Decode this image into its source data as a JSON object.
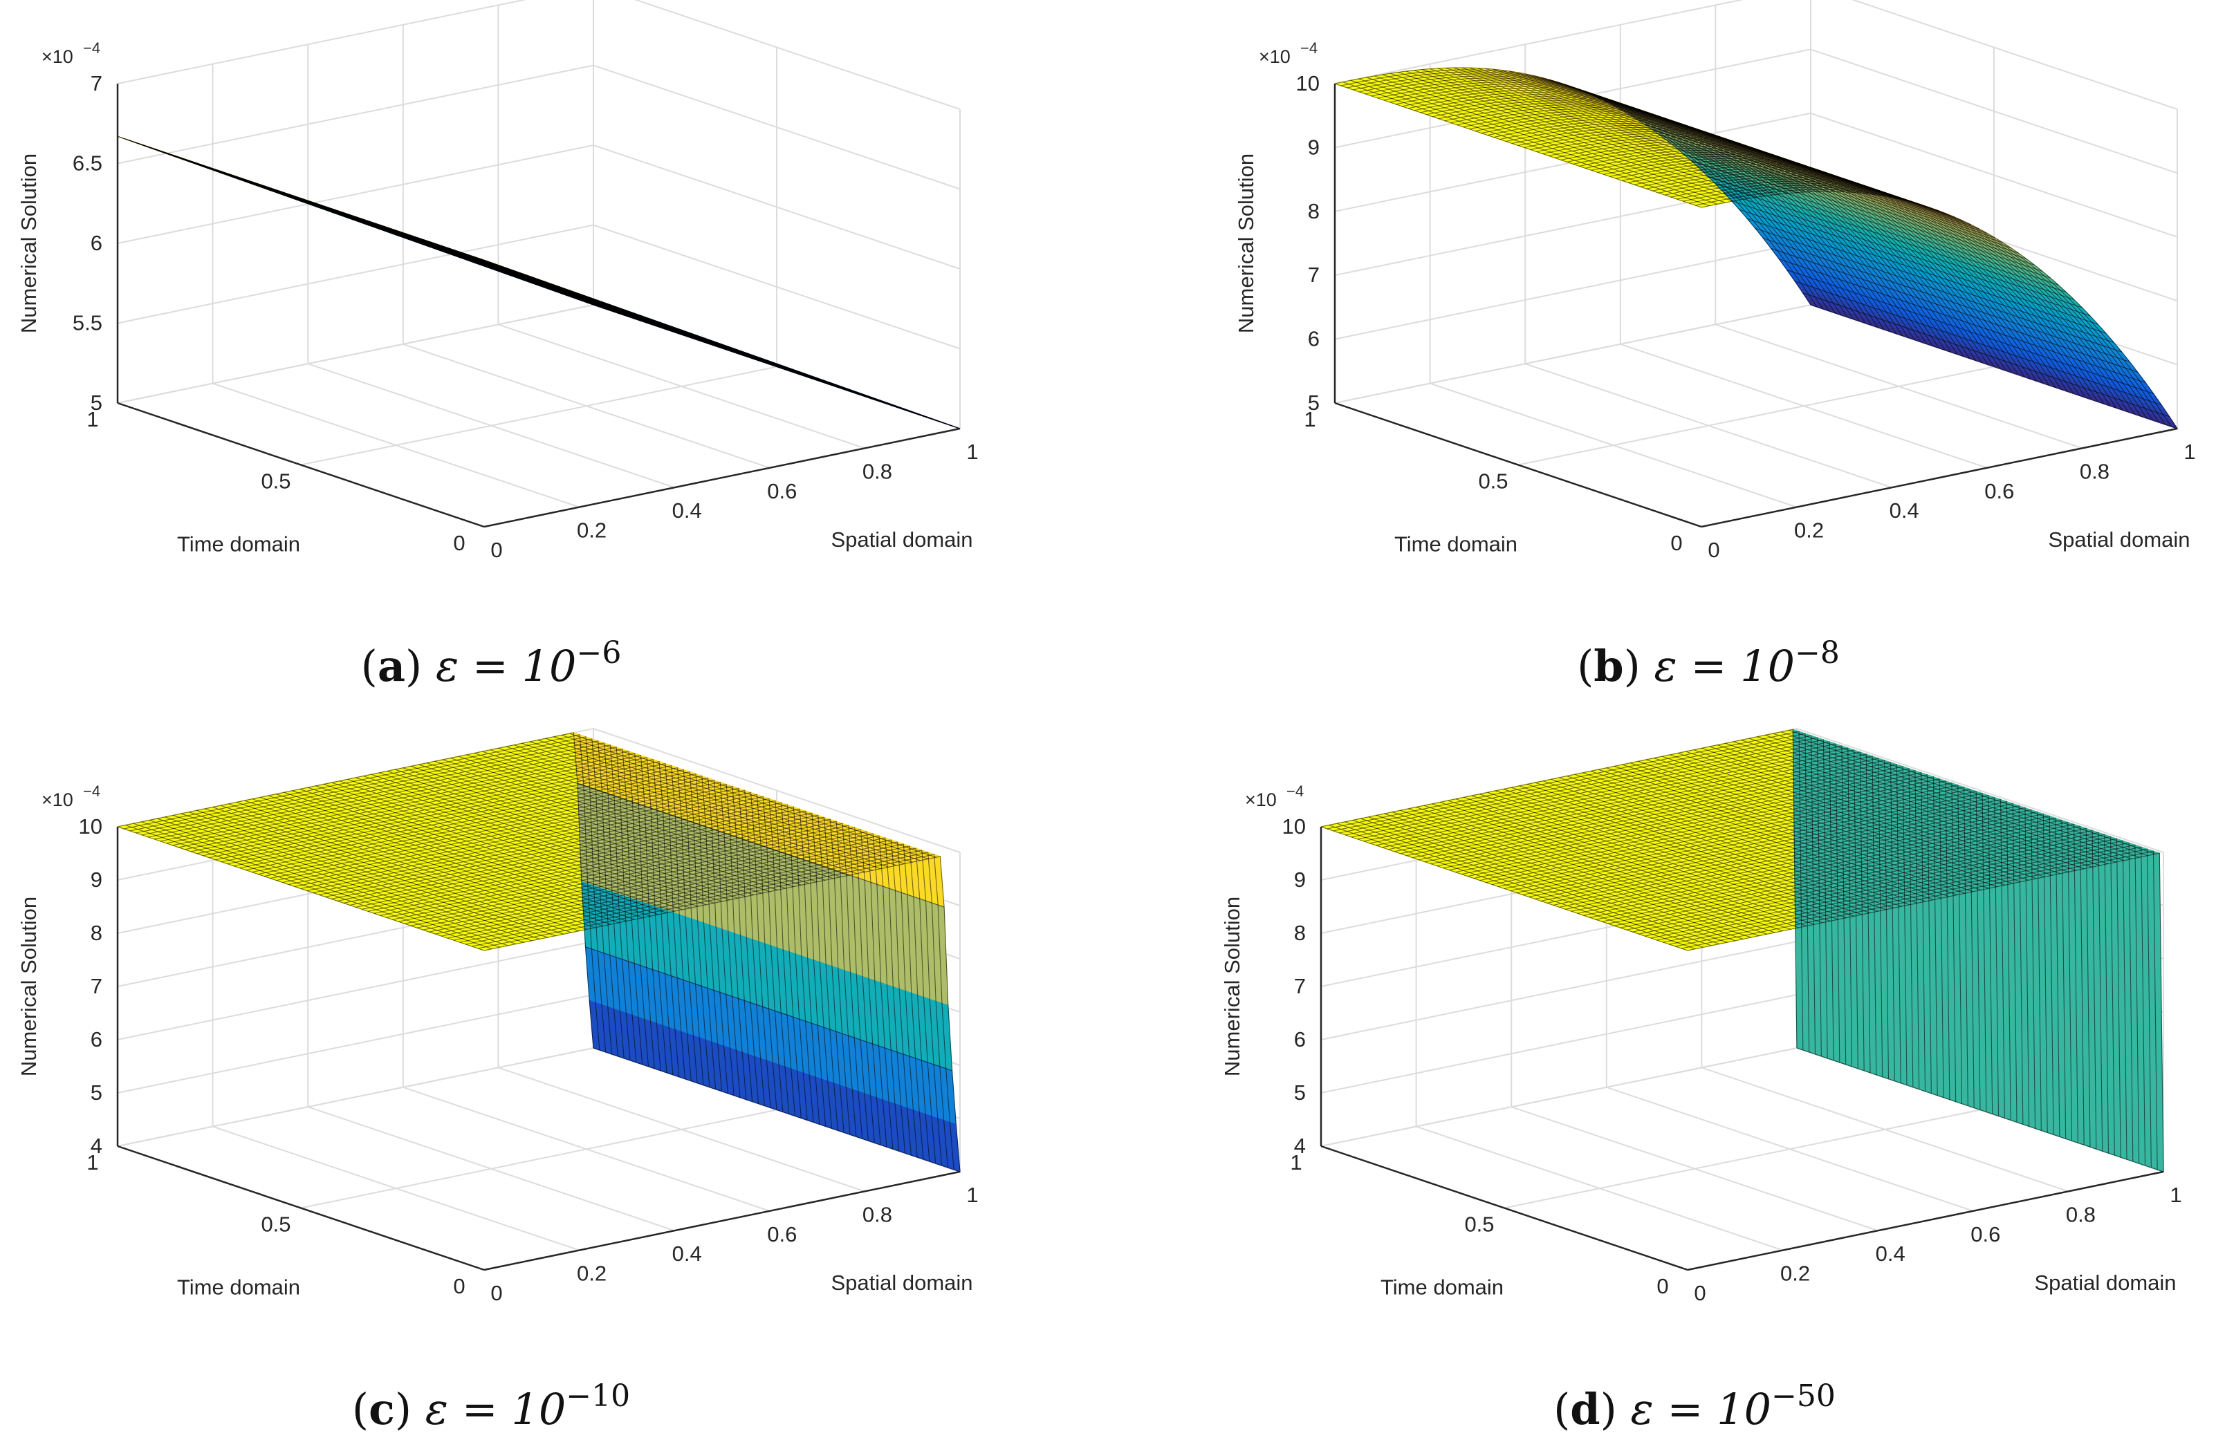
{
  "figure": {
    "description_axes": "Each panel: x = Spatial domain, t = Time domain, z = Numerical Solution"
  },
  "chart_data": [
    {
      "type": "surface",
      "panel": "a",
      "caption_letter": "a",
      "caption_eps": "ε = 10",
      "caption_exp": "−6",
      "epsilon": 1e-06,
      "xlabel": "Spatial domain",
      "ylabel": "Time domain",
      "zlabel": "Numerical Solution",
      "z_multiplier": "×10",
      "z_multiplier_exp": "−4",
      "xlim": [
        0,
        1
      ],
      "tlim": [
        0,
        1
      ],
      "zlim": [
        5,
        7
      ],
      "x_ticks": [
        "0",
        "0.2",
        "0.4",
        "0.6",
        "0.8",
        "1"
      ],
      "t_ticks": [
        "0",
        "0.5",
        "1"
      ],
      "z_ticks": [
        "5",
        "5.5",
        "6",
        "6.5",
        "7"
      ],
      "profile": "linear",
      "u_at_x0": 6.67,
      "u_at_x1": 5.0,
      "grid_lines": 60
    },
    {
      "type": "surface",
      "panel": "b",
      "caption_letter": "b",
      "caption_eps": "ε = 10",
      "caption_exp": "−8",
      "epsilon": 1e-08,
      "xlabel": "Spatial domain",
      "ylabel": "Time domain",
      "zlabel": "Numerical Solution",
      "z_multiplier": "×10",
      "z_multiplier_exp": "−4",
      "xlim": [
        0,
        1
      ],
      "tlim": [
        0,
        1
      ],
      "zlim": [
        5,
        10
      ],
      "x_ticks": [
        "0",
        "0.2",
        "0.4",
        "0.6",
        "0.8",
        "1"
      ],
      "t_ticks": [
        "0",
        "0.5",
        "1"
      ],
      "z_ticks": [
        "5",
        "6",
        "7",
        "8",
        "9",
        "10"
      ],
      "profile": "curved",
      "u_at_x0": 10.0,
      "u_at_x1": 5.0,
      "grid_lines": 60
    },
    {
      "type": "surface",
      "panel": "c",
      "caption_letter": "c",
      "caption_eps": "ε = 10",
      "caption_exp": "−10",
      "epsilon": 1e-10,
      "xlabel": "Spatial domain",
      "ylabel": "Time domain",
      "zlabel": "Numerical Solution",
      "z_multiplier": "×10",
      "z_multiplier_exp": "−4",
      "xlim": [
        0,
        1
      ],
      "tlim": [
        0,
        1
      ],
      "zlim": [
        4,
        10
      ],
      "x_ticks": [
        "0",
        "0.2",
        "0.4",
        "0.6",
        "0.8",
        "1"
      ],
      "t_ticks": [
        "0",
        "0.5",
        "1"
      ],
      "z_ticks": [
        "4",
        "5",
        "6",
        "7",
        "8",
        "9",
        "10"
      ],
      "profile": "steep-layer",
      "u_plateau": 10.0,
      "u_at_x1": 4.0,
      "grid_lines": 60
    },
    {
      "type": "surface",
      "panel": "d",
      "caption_letter": "d",
      "caption_eps": "ε = 10",
      "caption_exp": "−50",
      "epsilon": 1e-50,
      "xlabel": "Spatial domain",
      "ylabel": "Time domain",
      "zlabel": "Numerical Solution",
      "z_multiplier": "×10",
      "z_multiplier_exp": "−4",
      "xlim": [
        0,
        1
      ],
      "tlim": [
        0,
        1
      ],
      "zlim": [
        4,
        10
      ],
      "x_ticks": [
        "0",
        "0.2",
        "0.4",
        "0.6",
        "0.8",
        "1"
      ],
      "t_ticks": [
        "0",
        "0.5",
        "1"
      ],
      "z_ticks": [
        "4",
        "5",
        "6",
        "7",
        "8",
        "9",
        "10"
      ],
      "profile": "step",
      "u_plateau": 10.0,
      "u_at_x1": 4.0,
      "grid_lines": 60
    }
  ]
}
